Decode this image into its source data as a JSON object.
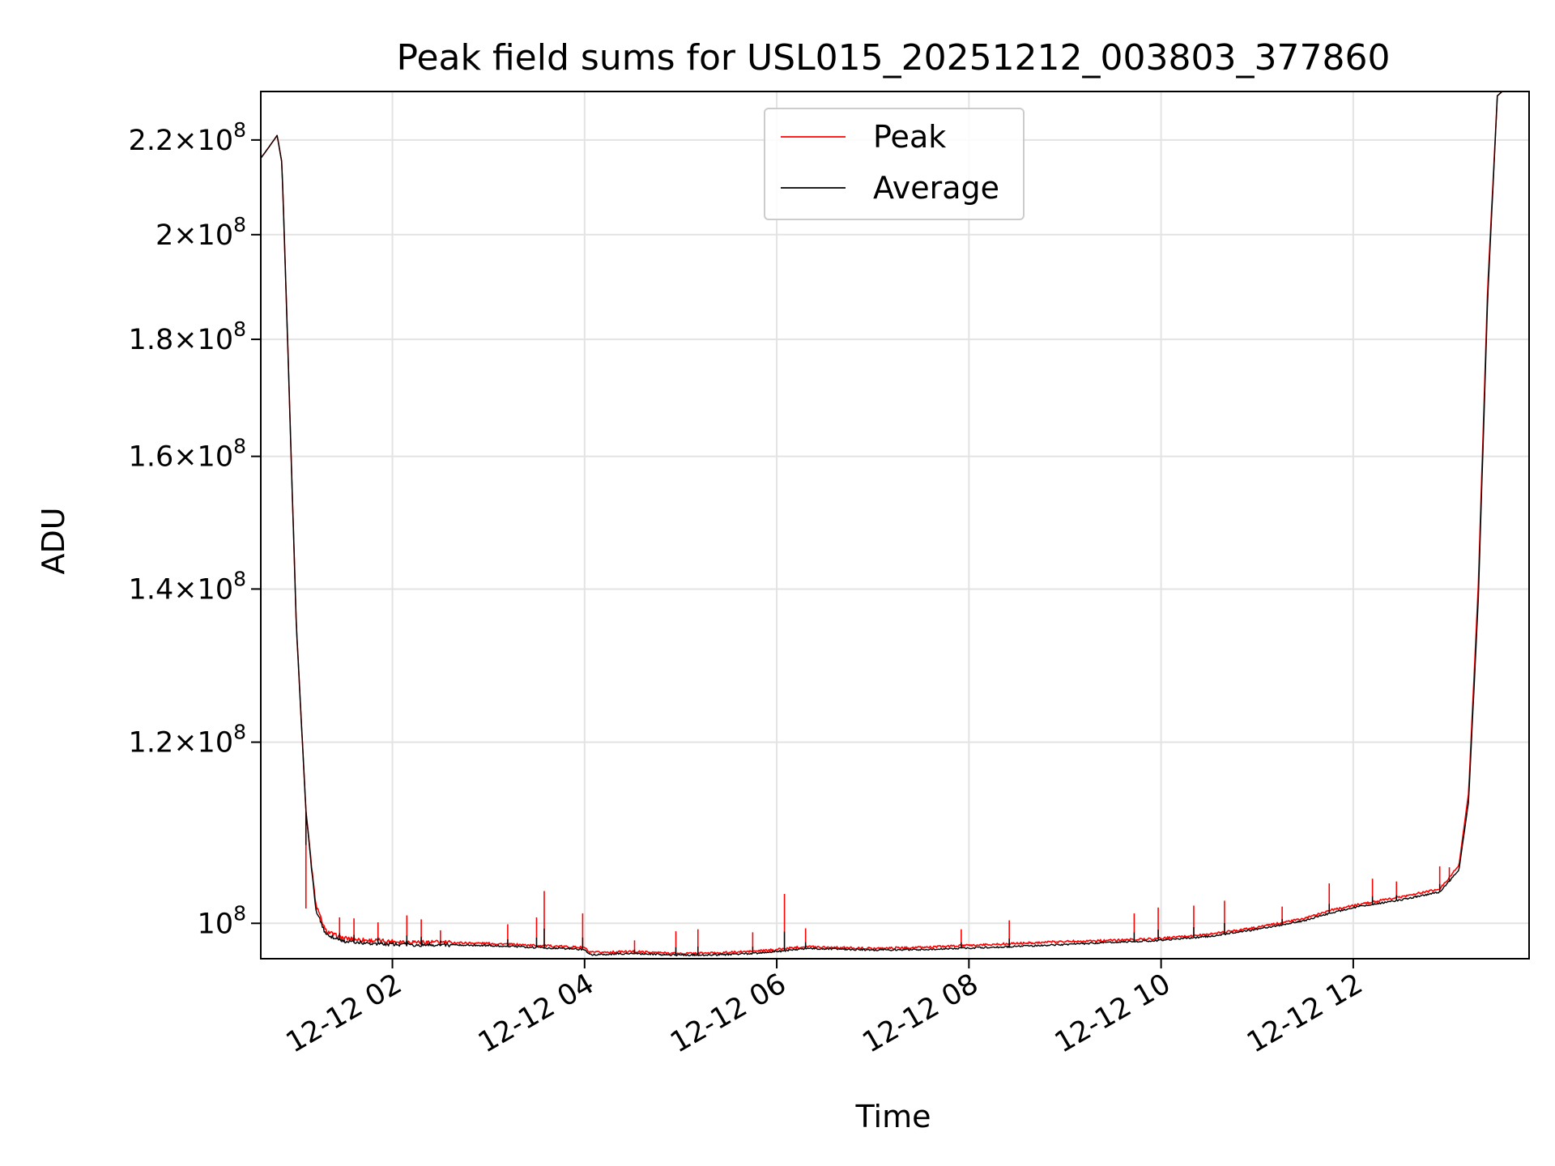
{
  "chart_data": {
    "type": "line",
    "title": "Peak field sums for USL015_20251212_003803_377860",
    "xlabel": "Time",
    "ylabel": "ADU",
    "x_unit": "hours (12-12)",
    "xlim": [
      0.63,
      13.83
    ],
    "ylim": [
      96500000,
      231000000
    ],
    "yscale": "log",
    "grid": true,
    "legend_position": "top-center",
    "x_ticks": [
      {
        "value": 2,
        "label": "12-12 02"
      },
      {
        "value": 4,
        "label": "12-12 04"
      },
      {
        "value": 6,
        "label": "12-12 06"
      },
      {
        "value": 8,
        "label": "12-12 08"
      },
      {
        "value": 10,
        "label": "12-12 10"
      },
      {
        "value": 12,
        "label": "12-12 12"
      }
    ],
    "y_ticks": [
      {
        "value": 100000000,
        "mantissa": "",
        "exponent": "8"
      },
      {
        "value": 120000000,
        "mantissa": "1.2",
        "exponent": "8"
      },
      {
        "value": 140000000,
        "mantissa": "1.4",
        "exponent": "8"
      },
      {
        "value": 160000000,
        "mantissa": "1.6",
        "exponent": "8"
      },
      {
        "value": 180000000,
        "mantissa": "1.8",
        "exponent": "8"
      },
      {
        "value": 200000000,
        "mantissa": "2",
        "exponent": "8"
      },
      {
        "value": 220000000,
        "mantissa": "2.2",
        "exponent": "8"
      }
    ],
    "series": [
      {
        "name": "Peak",
        "color": "#ff0000",
        "x": [
          0.63,
          0.7,
          0.8,
          0.85,
          0.9,
          1.0,
          1.1,
          1.2,
          1.3,
          1.4,
          1.5,
          1.75,
          2.0,
          2.5,
          3.0,
          3.5,
          4.0,
          4.05,
          4.5,
          5.0,
          5.5,
          5.9,
          6.3,
          6.6,
          7.0,
          7.5,
          8.0,
          8.5,
          9.0,
          9.5,
          10.0,
          10.5,
          11.0,
          11.5,
          11.75,
          12.0,
          12.5,
          12.9,
          13.1,
          13.2,
          13.3,
          13.4,
          13.5,
          13.55,
          13.83
        ],
        "y": [
          216000000,
          218000000,
          221000000,
          215000000,
          185000000,
          135000000,
          112000000,
          102000000,
          99300000,
          98800000,
          98500000,
          98300000,
          98200000,
          98100000,
          98000000,
          97800000,
          97600000,
          97100000,
          97200000,
          97000000,
          97100000,
          97300000,
          97700000,
          97600000,
          97500000,
          97600000,
          97800000,
          98000000,
          98200000,
          98300000,
          98500000,
          98900000,
          99600000,
          100500000,
          101300000,
          101800000,
          102700000,
          103500000,
          106000000,
          114000000,
          140000000,
          190000000,
          230000000,
          231000000,
          231000000
        ]
      },
      {
        "name": "Average",
        "color": "#000000",
        "x": [
          0.63,
          0.7,
          0.8,
          0.85,
          0.9,
          1.0,
          1.1,
          1.2,
          1.3,
          1.4,
          1.5,
          1.75,
          2.0,
          2.5,
          3.0,
          3.5,
          4.0,
          4.05,
          4.5,
          5.0,
          5.5,
          5.9,
          6.3,
          6.6,
          7.0,
          7.5,
          8.0,
          8.5,
          9.0,
          9.5,
          10.0,
          10.5,
          11.0,
          11.5,
          11.75,
          12.0,
          12.5,
          12.9,
          13.1,
          13.2,
          13.3,
          13.4,
          13.5,
          13.55,
          13.83
        ],
        "y": [
          216000000,
          218000000,
          221000000,
          215000000,
          185000000,
          135000000,
          112000000,
          101500000,
          99000000,
          98500000,
          98200000,
          98000000,
          97900000,
          97850000,
          97800000,
          97600000,
          97400000,
          96900000,
          97000000,
          96850000,
          96900000,
          97100000,
          97500000,
          97450000,
          97350000,
          97400000,
          97550000,
          97700000,
          97900000,
          98100000,
          98300000,
          98700000,
          99400000,
          100300000,
          101000000,
          101600000,
          102400000,
          103200000,
          105500000,
          113000000,
          138000000,
          188000000,
          230000000,
          231000000,
          231000000
        ]
      }
    ],
    "spikes": [
      {
        "x": 1.1,
        "y": 101500000
      },
      {
        "x": 1.25,
        "y": 100200000
      },
      {
        "x": 1.45,
        "y": 100600000
      },
      {
        "x": 1.6,
        "y": 100500000
      },
      {
        "x": 1.85,
        "y": 100100000
      },
      {
        "x": 2.15,
        "y": 100800000
      },
      {
        "x": 2.3,
        "y": 100400000
      },
      {
        "x": 2.5,
        "y": 99300000
      },
      {
        "x": 3.2,
        "y": 99900000
      },
      {
        "x": 3.5,
        "y": 100600000
      },
      {
        "x": 3.58,
        "y": 103300000
      },
      {
        "x": 3.98,
        "y": 101000000
      },
      {
        "x": 4.52,
        "y": 98300000
      },
      {
        "x": 4.95,
        "y": 99200000
      },
      {
        "x": 5.18,
        "y": 99400000
      },
      {
        "x": 5.75,
        "y": 99100000
      },
      {
        "x": 6.08,
        "y": 103000000
      },
      {
        "x": 6.3,
        "y": 99500000
      },
      {
        "x": 7.92,
        "y": 99400000
      },
      {
        "x": 8.42,
        "y": 100300000
      },
      {
        "x": 9.72,
        "y": 101000000
      },
      {
        "x": 9.97,
        "y": 101600000
      },
      {
        "x": 10.34,
        "y": 101800000
      },
      {
        "x": 10.66,
        "y": 102300000
      },
      {
        "x": 11.26,
        "y": 101700000
      },
      {
        "x": 11.75,
        "y": 104100000
      },
      {
        "x": 12.2,
        "y": 104600000
      },
      {
        "x": 12.45,
        "y": 104300000
      },
      {
        "x": 12.9,
        "y": 105900000
      },
      {
        "x": 13.0,
        "y": 105800000
      }
    ]
  }
}
